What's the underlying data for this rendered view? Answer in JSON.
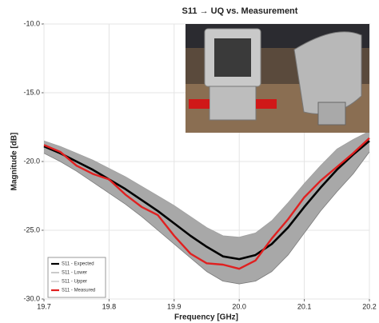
{
  "chart_data": {
    "type": "line",
    "title": "S11 → UQ vs. Measurement",
    "x_label": "Frequency [GHz]",
    "y_label": "Magnitude [dB]",
    "x": [
      19.7,
      19.725,
      19.75,
      19.775,
      19.8,
      19.825,
      19.85,
      19.875,
      19.9,
      19.925,
      19.95,
      19.975,
      20.0,
      20.025,
      20.05,
      20.075,
      20.1,
      20.125,
      20.15,
      20.175,
      20.2
    ],
    "series": [
      {
        "name": "S11 - Expected",
        "color": "#000000",
        "values": [
          -18.9,
          -19.4,
          -20.0,
          -20.6,
          -21.3,
          -22.0,
          -22.8,
          -23.6,
          -24.5,
          -25.4,
          -26.2,
          -26.9,
          -27.1,
          -26.8,
          -26.0,
          -24.8,
          -23.3,
          -21.9,
          -20.6,
          -19.5,
          -18.5
        ]
      },
      {
        "name": "S11 - Lower",
        "color": "#7a7a7a",
        "values": [
          -19.4,
          -20.0,
          -20.7,
          -21.5,
          -22.3,
          -23.1,
          -24.0,
          -25.0,
          -26.0,
          -27.0,
          -28.0,
          -28.7,
          -28.9,
          -28.7,
          -28.0,
          -26.8,
          -25.2,
          -23.6,
          -22.2,
          -20.9,
          -19.3
        ]
      },
      {
        "name": "S11 - Upper",
        "color": "#a0a0a0",
        "values": [
          -18.5,
          -18.9,
          -19.4,
          -19.9,
          -20.5,
          -21.1,
          -21.8,
          -22.5,
          -23.2,
          -24.0,
          -24.8,
          -25.4,
          -25.5,
          -25.2,
          -24.3,
          -23.0,
          -21.6,
          -20.3,
          -19.1,
          -18.4,
          -17.8
        ]
      },
      {
        "name": "S11 - Measured",
        "color": "#e02020",
        "values": [
          -18.8,
          -19.3,
          -20.3,
          -20.9,
          -21.3,
          -22.4,
          -23.3,
          -23.9,
          -25.4,
          -26.7,
          -27.4,
          -27.5,
          -27.8,
          -27.2,
          -25.6,
          -24.2,
          -22.6,
          -21.4,
          -20.4,
          -19.4,
          -18.3
        ]
      }
    ],
    "xlim": [
      19.7,
      20.2
    ],
    "xticks": [
      19.7,
      19.8,
      19.9,
      {
        "value": 20.0,
        "label": "20.0"
      },
      20.1,
      20.2
    ],
    "ylim": [
      -30,
      -10
    ],
    "yticks": [
      {
        "value": -30,
        "label": "-30.0"
      },
      {
        "value": -25,
        "label": "-25.0"
      },
      {
        "value": -20,
        "label": "-20.0"
      },
      {
        "value": -15,
        "label": "-15.0"
      },
      {
        "value": -10,
        "label": "-10.0"
      }
    ],
    "grid": true,
    "legend": "lower left"
  }
}
